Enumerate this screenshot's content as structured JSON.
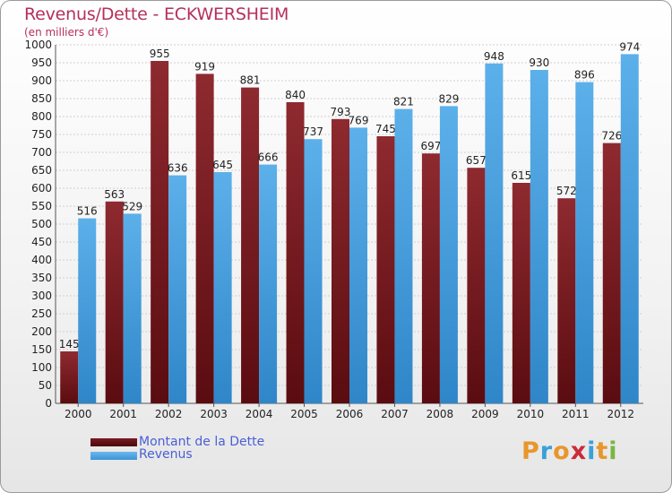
{
  "title": "Revenus/Dette - ECKWERSHEIM",
  "subtitle": "(en milliers d'€)",
  "logo": {
    "text": "Proxiti",
    "letters": [
      {
        "ch": "P",
        "color": "#e8962b"
      },
      {
        "ch": "r",
        "color": "#3aa0d8"
      },
      {
        "ch": "o",
        "color": "#e8962b"
      },
      {
        "ch": "x",
        "color": "#cc2a3a"
      },
      {
        "ch": "i",
        "color": "#3aa0d8"
      },
      {
        "ch": "t",
        "color": "#e8962b"
      },
      {
        "ch": "i",
        "color": "#7ab540"
      }
    ]
  },
  "colors": {
    "dette": "#7a1a20",
    "revenus": "#3a95d6",
    "grid": "#cfcfcf",
    "text": "#222222",
    "accent": "#b5305a",
    "legend_text": "#4a5fd6"
  },
  "chart_data": {
    "type": "bar",
    "title": "Revenus/Dette - ECKWERSHEIM",
    "ylabel": "(en milliers d'€)",
    "categories": [
      "2000",
      "2001",
      "2002",
      "2003",
      "2004",
      "2005",
      "2006",
      "2007",
      "2008",
      "2009",
      "2010",
      "2011",
      "2012"
    ],
    "series": [
      {
        "name": "Montant de la Dette",
        "values": [
          145,
          563,
          955,
          919,
          881,
          840,
          793,
          745,
          697,
          657,
          615,
          572,
          726
        ]
      },
      {
        "name": "Revenus",
        "values": [
          516,
          529,
          636,
          645,
          666,
          737,
          769,
          821,
          829,
          948,
          930,
          896,
          974
        ]
      }
    ],
    "ylim": [
      0,
      1000
    ],
    "ytick_step": 50,
    "grid": true,
    "legend_position": "bottom-left"
  }
}
